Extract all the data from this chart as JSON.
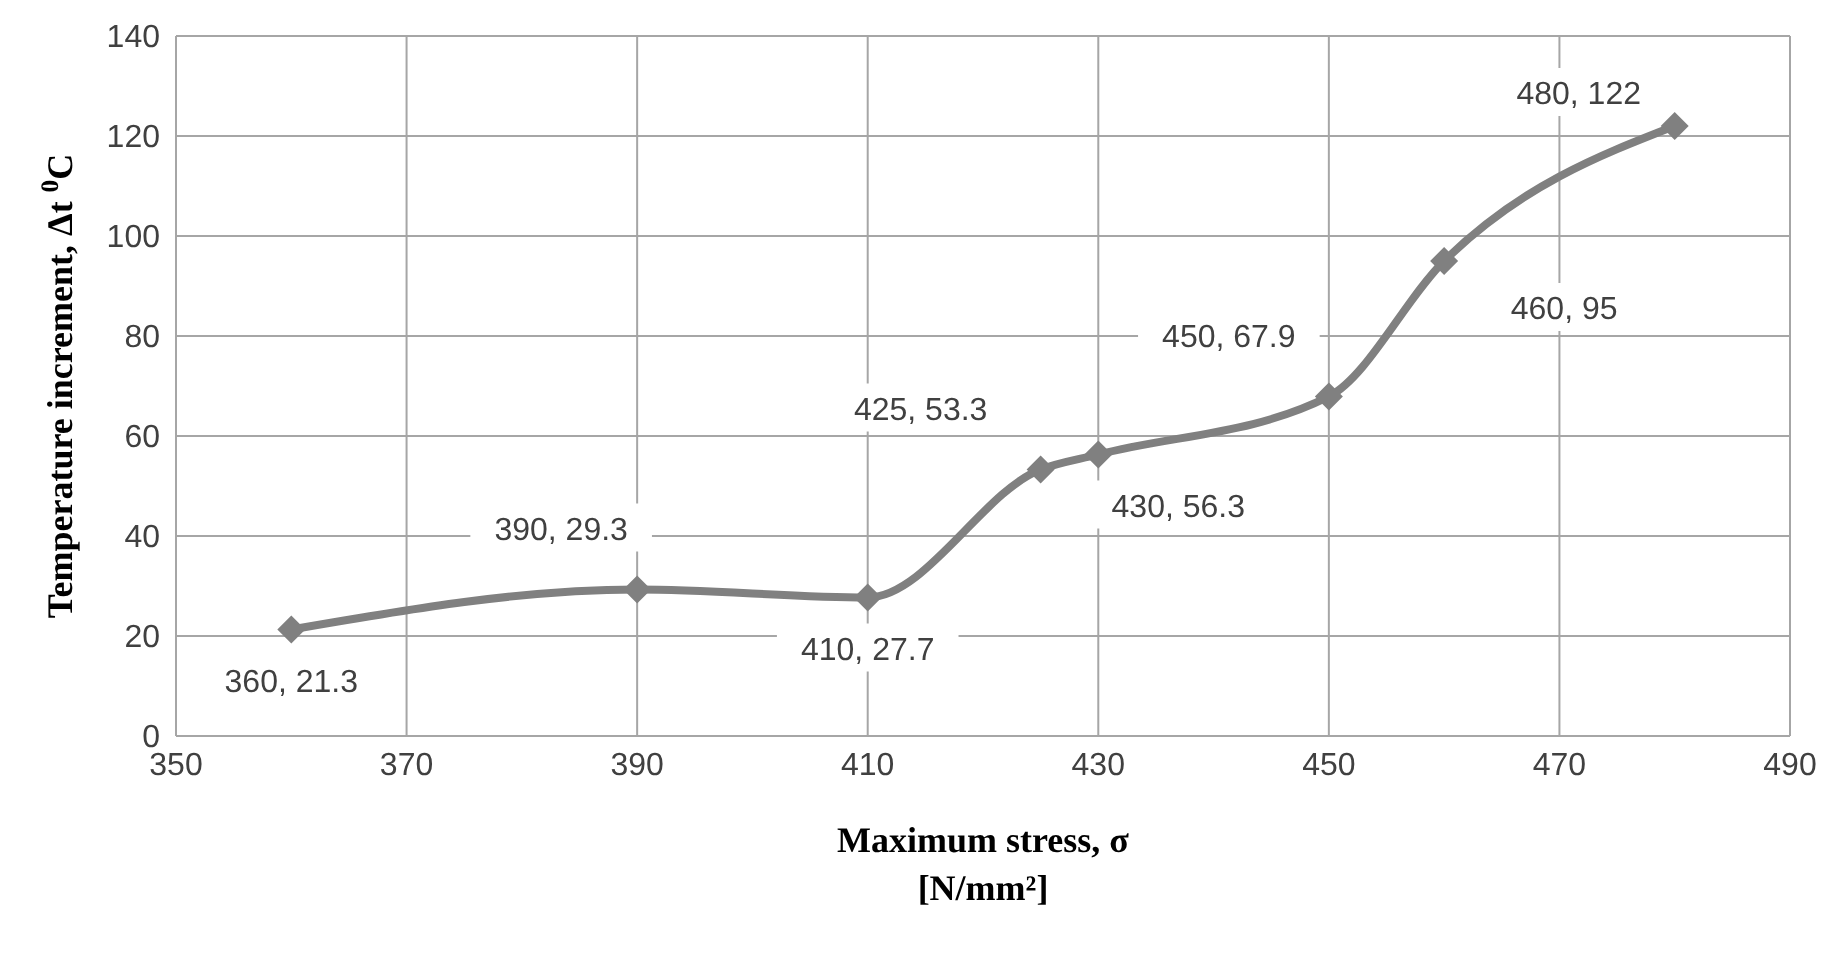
{
  "chart_data": {
    "type": "line",
    "xlabel": "Maximum stress, σ\n[N/mm²]",
    "ylabel": "Temperature increment, Δt $^{0}$C",
    "x": [
      360,
      390,
      410,
      425,
      430,
      450,
      460,
      480
    ],
    "series": [
      {
        "color": "#808080",
        "values": [
          21.3,
          29.3,
          27.7,
          53.3,
          56.3,
          67.9,
          95,
          122
        ],
        "value_labels": [
          "360, 21.3",
          "390, 29.3",
          "410, 27.7",
          "425, 53.3",
          "430, 56.3",
          "450, 67.9",
          "460, 95",
          "480, 122"
        ]
      }
    ],
    "xlim": [
      350,
      490
    ],
    "xticks": [
      350,
      370,
      390,
      410,
      430,
      450,
      470,
      490
    ],
    "ylim": [
      0,
      140
    ],
    "yticks": [
      0,
      20,
      40,
      60,
      80,
      100,
      120,
      140
    ],
    "grid": true,
    "legend": false,
    "marker": "diamond",
    "line_style": "solid"
  }
}
